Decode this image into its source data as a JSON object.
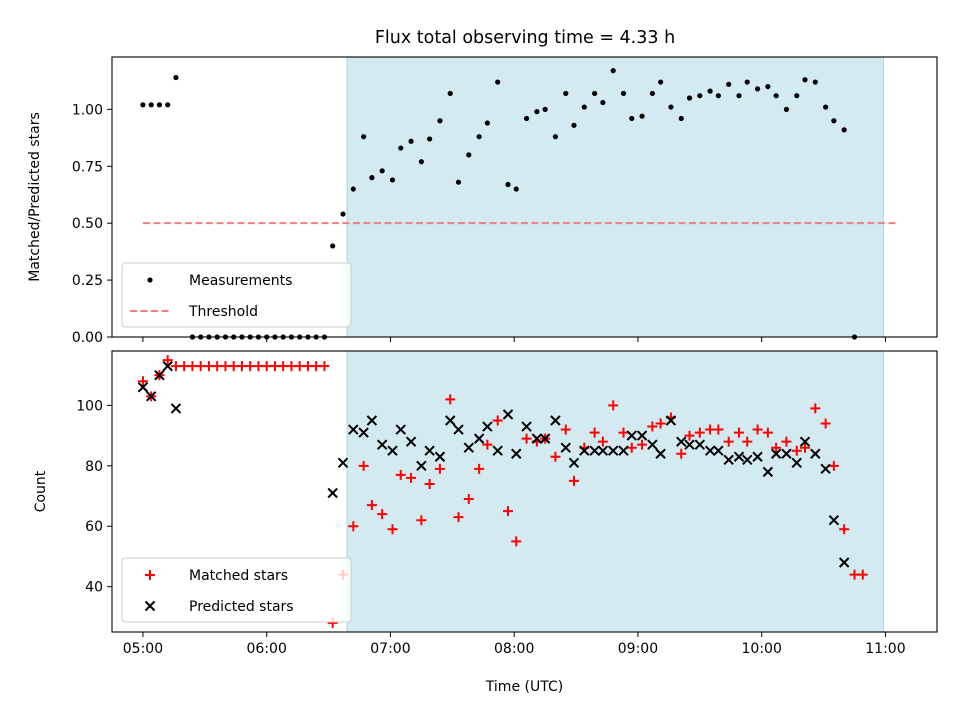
{
  "chart_data": [
    {
      "type": "scatter",
      "title": "Flux total observing time = 4.33 h",
      "xlabel": "",
      "ylabel": "Matched/Predicted stars",
      "ylim": [
        0,
        1.23
      ],
      "xlim": [
        "04:45",
        "11:25"
      ],
      "x_ticks": [
        "05:00",
        "06:00",
        "07:00",
        "08:00",
        "09:00",
        "10:00",
        "11:00"
      ],
      "y_ticks": [
        "0.00",
        "0.25",
        "0.50",
        "0.75",
        "1.00"
      ],
      "shaded_interval": [
        "06:39",
        "10:59"
      ],
      "shade_color": "#d3eaf1",
      "legend_position": "lower-left",
      "legend": {
        "measurements": "Measurements",
        "threshold": "Threshold"
      },
      "threshold": {
        "value": 0.5,
        "x_start": "05:00",
        "x_end": "11:05",
        "color": "#f08080"
      },
      "series": [
        {
          "name": "Measurements",
          "marker": "dot",
          "color": "#000000",
          "points": [
            [
              "05:00",
              1.02
            ],
            [
              "05:04",
              1.02
            ],
            [
              "05:08",
              1.02
            ],
            [
              "05:12",
              1.02
            ],
            [
              "05:16",
              1.14
            ],
            [
              "05:24",
              0.0
            ],
            [
              "05:28",
              0.0
            ],
            [
              "05:32",
              0.0
            ],
            [
              "05:36",
              0.0
            ],
            [
              "05:40",
              0.0
            ],
            [
              "05:44",
              0.0
            ],
            [
              "05:48",
              0.0
            ],
            [
              "05:52",
              0.0
            ],
            [
              "05:56",
              0.0
            ],
            [
              "06:00",
              0.0
            ],
            [
              "06:04",
              0.0
            ],
            [
              "06:08",
              0.0
            ],
            [
              "06:12",
              0.0
            ],
            [
              "06:16",
              0.0
            ],
            [
              "06:20",
              0.0
            ],
            [
              "06:24",
              0.0
            ],
            [
              "06:28",
              0.0
            ],
            [
              "06:32",
              0.4
            ],
            [
              "06:37",
              0.54
            ],
            [
              "06:42",
              0.65
            ],
            [
              "06:47",
              0.88
            ],
            [
              "06:51",
              0.7
            ],
            [
              "06:56",
              0.73
            ],
            [
              "07:01",
              0.69
            ],
            [
              "07:05",
              0.83
            ],
            [
              "07:10",
              0.86
            ],
            [
              "07:15",
              0.77
            ],
            [
              "07:19",
              0.87
            ],
            [
              "07:24",
              0.95
            ],
            [
              "07:29",
              1.07
            ],
            [
              "07:33",
              0.68
            ],
            [
              "07:38",
              0.8
            ],
            [
              "07:43",
              0.88
            ],
            [
              "07:47",
              0.94
            ],
            [
              "07:52",
              1.12
            ],
            [
              "07:57",
              0.67
            ],
            [
              "08:01",
              0.65
            ],
            [
              "08:06",
              0.96
            ],
            [
              "08:11",
              0.99
            ],
            [
              "08:15",
              1.0
            ],
            [
              "08:20",
              0.88
            ],
            [
              "08:25",
              1.07
            ],
            [
              "08:29",
              0.93
            ],
            [
              "08:34",
              1.01
            ],
            [
              "08:39",
              1.07
            ],
            [
              "08:43",
              1.03
            ],
            [
              "08:48",
              1.17
            ],
            [
              "08:53",
              1.07
            ],
            [
              "08:57",
              0.96
            ],
            [
              "09:02",
              0.97
            ],
            [
              "09:07",
              1.07
            ],
            [
              "09:11",
              1.12
            ],
            [
              "09:16",
              1.01
            ],
            [
              "09:21",
              0.96
            ],
            [
              "09:25",
              1.05
            ],
            [
              "09:30",
              1.06
            ],
            [
              "09:35",
              1.08
            ],
            [
              "09:39",
              1.06
            ],
            [
              "09:44",
              1.11
            ],
            [
              "09:49",
              1.06
            ],
            [
              "09:53",
              1.12
            ],
            [
              "09:58",
              1.09
            ],
            [
              "10:03",
              1.1
            ],
            [
              "10:07",
              1.06
            ],
            [
              "10:12",
              1.0
            ],
            [
              "10:17",
              1.06
            ],
            [
              "10:21",
              1.13
            ],
            [
              "10:26",
              1.12
            ],
            [
              "10:31",
              1.01
            ],
            [
              "10:35",
              0.95
            ],
            [
              "10:40",
              0.91
            ],
            [
              "10:45",
              0.0
            ]
          ]
        }
      ]
    },
    {
      "type": "scatter",
      "title": "",
      "xlabel": "Time (UTC)",
      "ylabel": "Count",
      "ylim": [
        25,
        118
      ],
      "xlim": [
        "04:45",
        "11:25"
      ],
      "x_ticks": [
        "05:00",
        "06:00",
        "07:00",
        "08:00",
        "09:00",
        "10:00",
        "11:00"
      ],
      "y_ticks": [
        "40",
        "60",
        "80",
        "100"
      ],
      "shaded_interval": [
        "06:39",
        "10:59"
      ],
      "shade_color": "#d3eaf1",
      "legend_position": "lower-left",
      "series": [
        {
          "name": "Matched stars",
          "marker": "plus",
          "color": "#ff0000",
          "points": [
            [
              "05:00",
              108
            ],
            [
              "05:04",
              103
            ],
            [
              "05:08",
              110
            ],
            [
              "05:12",
              115
            ],
            [
              "05:16",
              113
            ],
            [
              "05:20",
              113
            ],
            [
              "05:24",
              113
            ],
            [
              "05:28",
              113
            ],
            [
              "05:32",
              113
            ],
            [
              "05:36",
              113
            ],
            [
              "05:40",
              113
            ],
            [
              "05:44",
              113
            ],
            [
              "05:48",
              113
            ],
            [
              "05:52",
              113
            ],
            [
              "05:56",
              113
            ],
            [
              "06:00",
              113
            ],
            [
              "06:04",
              113
            ],
            [
              "06:08",
              113
            ],
            [
              "06:12",
              113
            ],
            [
              "06:16",
              113
            ],
            [
              "06:20",
              113
            ],
            [
              "06:24",
              113
            ],
            [
              "06:28",
              113
            ],
            [
              "06:32",
              28
            ],
            [
              "06:37",
              44
            ],
            [
              "06:42",
              60
            ],
            [
              "06:47",
              80
            ],
            [
              "06:51",
              67
            ],
            [
              "06:56",
              64
            ],
            [
              "07:01",
              59
            ],
            [
              "07:05",
              77
            ],
            [
              "07:10",
              76
            ],
            [
              "07:15",
              62
            ],
            [
              "07:19",
              74
            ],
            [
              "07:24",
              79
            ],
            [
              "07:29",
              102
            ],
            [
              "07:33",
              63
            ],
            [
              "07:38",
              69
            ],
            [
              "07:43",
              79
            ],
            [
              "07:47",
              87
            ],
            [
              "07:52",
              95
            ],
            [
              "07:57",
              65
            ],
            [
              "08:01",
              55
            ],
            [
              "08:06",
              89
            ],
            [
              "08:11",
              88
            ],
            [
              "08:15",
              89
            ],
            [
              "08:20",
              83
            ],
            [
              "08:25",
              92
            ],
            [
              "08:29",
              75
            ],
            [
              "08:34",
              86
            ],
            [
              "08:39",
              91
            ],
            [
              "08:43",
              88
            ],
            [
              "08:48",
              100
            ],
            [
              "08:53",
              91
            ],
            [
              "08:57",
              86
            ],
            [
              "09:02",
              87
            ],
            [
              "09:07",
              93
            ],
            [
              "09:11",
              94
            ],
            [
              "09:16",
              96
            ],
            [
              "09:21",
              84
            ],
            [
              "09:25",
              90
            ],
            [
              "09:30",
              91
            ],
            [
              "09:35",
              92
            ],
            [
              "09:39",
              92
            ],
            [
              "09:44",
              88
            ],
            [
              "09:49",
              91
            ],
            [
              "09:53",
              88
            ],
            [
              "09:58",
              92
            ],
            [
              "10:03",
              91
            ],
            [
              "10:07",
              86
            ],
            [
              "10:12",
              88
            ],
            [
              "10:17",
              85
            ],
            [
              "10:21",
              86
            ],
            [
              "10:26",
              99
            ],
            [
              "10:31",
              94
            ],
            [
              "10:35",
              80
            ],
            [
              "10:40",
              59
            ],
            [
              "10:45",
              44
            ],
            [
              "10:49",
              44
            ]
          ]
        },
        {
          "name": "Predicted stars",
          "marker": "cross",
          "color": "#000000",
          "points": [
            [
              "05:00",
              106
            ],
            [
              "05:04",
              103
            ],
            [
              "05:08",
              110
            ],
            [
              "05:12",
              113
            ],
            [
              "05:16",
              99
            ],
            [
              "06:32",
              71
            ],
            [
              "06:37",
              81
            ],
            [
              "06:42",
              92
            ],
            [
              "06:47",
              91
            ],
            [
              "06:51",
              95
            ],
            [
              "06:56",
              87
            ],
            [
              "07:01",
              85
            ],
            [
              "07:05",
              92
            ],
            [
              "07:10",
              88
            ],
            [
              "07:15",
              80
            ],
            [
              "07:19",
              85
            ],
            [
              "07:24",
              83
            ],
            [
              "07:29",
              95
            ],
            [
              "07:33",
              92
            ],
            [
              "07:38",
              86
            ],
            [
              "07:43",
              89
            ],
            [
              "07:47",
              93
            ],
            [
              "07:52",
              85
            ],
            [
              "07:57",
              97
            ],
            [
              "08:01",
              84
            ],
            [
              "08:06",
              93
            ],
            [
              "08:11",
              89
            ],
            [
              "08:15",
              89
            ],
            [
              "08:20",
              95
            ],
            [
              "08:25",
              86
            ],
            [
              "08:29",
              81
            ],
            [
              "08:34",
              85
            ],
            [
              "08:39",
              85
            ],
            [
              "08:43",
              85
            ],
            [
              "08:48",
              85
            ],
            [
              "08:53",
              85
            ],
            [
              "08:57",
              90
            ],
            [
              "09:02",
              90
            ],
            [
              "09:07",
              87
            ],
            [
              "09:11",
              84
            ],
            [
              "09:16",
              95
            ],
            [
              "09:21",
              88
            ],
            [
              "09:25",
              87
            ],
            [
              "09:30",
              87
            ],
            [
              "09:35",
              85
            ],
            [
              "09:39",
              85
            ],
            [
              "09:44",
              82
            ],
            [
              "09:49",
              83
            ],
            [
              "09:53",
              82
            ],
            [
              "09:58",
              83
            ],
            [
              "10:03",
              78
            ],
            [
              "10:07",
              84
            ],
            [
              "10:12",
              84
            ],
            [
              "10:17",
              81
            ],
            [
              "10:21",
              88
            ],
            [
              "10:26",
              84
            ],
            [
              "10:31",
              79
            ],
            [
              "10:35",
              62
            ],
            [
              "10:40",
              48
            ]
          ]
        }
      ]
    }
  ]
}
